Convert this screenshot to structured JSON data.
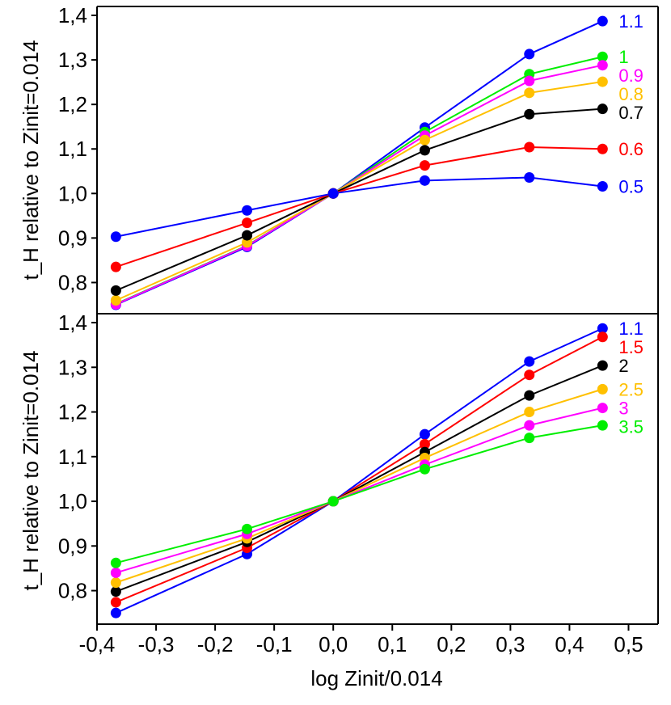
{
  "chart_data": [
    {
      "type": "line",
      "panel": "top",
      "ylabel": "t_H relative to Zinit=0.014",
      "xlabel": "",
      "xlim": [
        -0.4,
        0.55
      ],
      "ylim": [
        0.73,
        1.42
      ],
      "yticks": [
        0.8,
        0.9,
        1.0,
        1.1,
        1.2,
        1.3,
        1.4
      ],
      "ytick_labels": [
        "0,8",
        "0,9",
        "1,0",
        "1,1",
        "1,2",
        "1,3",
        "1,4"
      ],
      "x": [
        -0.368,
        -0.146,
        0.0,
        0.155,
        0.332,
        0.456
      ],
      "series": [
        {
          "name": "1.1",
          "color": "#0000ff",
          "values": [
            0.75,
            0.88,
            1.0,
            1.148,
            1.313,
            1.387
          ]
        },
        {
          "name": "1",
          "color": "#00ee00",
          "values": [
            0.752,
            0.883,
            1.0,
            1.138,
            1.268,
            1.307
          ]
        },
        {
          "name": "0.9",
          "color": "#ff00ff",
          "values": [
            0.751,
            0.882,
            1.0,
            1.13,
            1.253,
            1.288
          ]
        },
        {
          "name": "0.8",
          "color": "#ffc000",
          "values": [
            0.76,
            0.89,
            1.0,
            1.12,
            1.226,
            1.251
          ]
        },
        {
          "name": "0.7",
          "color": "#000000",
          "values": [
            0.782,
            0.906,
            1.0,
            1.097,
            1.178,
            1.19
          ]
        },
        {
          "name": "0.6",
          "color": "#ff0000",
          "values": [
            0.835,
            0.934,
            1.0,
            1.063,
            1.104,
            1.1
          ]
        },
        {
          "name": "0.5",
          "color": "#0000ff",
          "values": [
            0.903,
            0.962,
            1.0,
            1.029,
            1.036,
            1.016
          ]
        }
      ]
    },
    {
      "type": "line",
      "panel": "bottom",
      "ylabel": "t_H relative to Zinit=0.014",
      "xlabel": "log Zinit/0.014",
      "xlim": [
        -0.4,
        0.55
      ],
      "xticks": [
        -0.4,
        -0.3,
        -0.2,
        -0.1,
        0.0,
        0.1,
        0.2,
        0.3,
        0.4,
        0.5
      ],
      "xtick_labels": [
        "-0,4",
        "-0,3",
        "-0,2",
        "-0,1",
        "0,0",
        "0,1",
        "0,2",
        "0,3",
        "0,4",
        "0,5"
      ],
      "ylim": [
        0.725,
        1.42
      ],
      "yticks": [
        0.8,
        0.9,
        1.0,
        1.1,
        1.2,
        1.3,
        1.4
      ],
      "ytick_labels": [
        "0,8",
        "0,9",
        "1,0",
        "1,1",
        "1,2",
        "1,3",
        "1,4"
      ],
      "x": [
        -0.368,
        -0.146,
        0.0,
        0.155,
        0.332,
        0.456
      ],
      "series": [
        {
          "name": "1.1",
          "color": "#0000ff",
          "values": [
            0.75,
            0.882,
            1.0,
            1.15,
            1.313,
            1.387
          ]
        },
        {
          "name": "1.5",
          "color": "#ff0000",
          "values": [
            0.774,
            0.896,
            1.0,
            1.128,
            1.283,
            1.368
          ]
        },
        {
          "name": "2",
          "color": "#000000",
          "values": [
            0.798,
            0.909,
            1.0,
            1.11,
            1.237,
            1.304
          ]
        },
        {
          "name": "2.5",
          "color": "#ffc000",
          "values": [
            0.818,
            0.917,
            1.0,
            1.097,
            1.2,
            1.251
          ]
        },
        {
          "name": "3",
          "color": "#ff00ff",
          "values": [
            0.84,
            0.927,
            1.0,
            1.082,
            1.17,
            1.209
          ]
        },
        {
          "name": "3.5",
          "color": "#00ee00",
          "values": [
            0.862,
            0.938,
            1.0,
            1.072,
            1.142,
            1.17
          ]
        }
      ]
    }
  ]
}
